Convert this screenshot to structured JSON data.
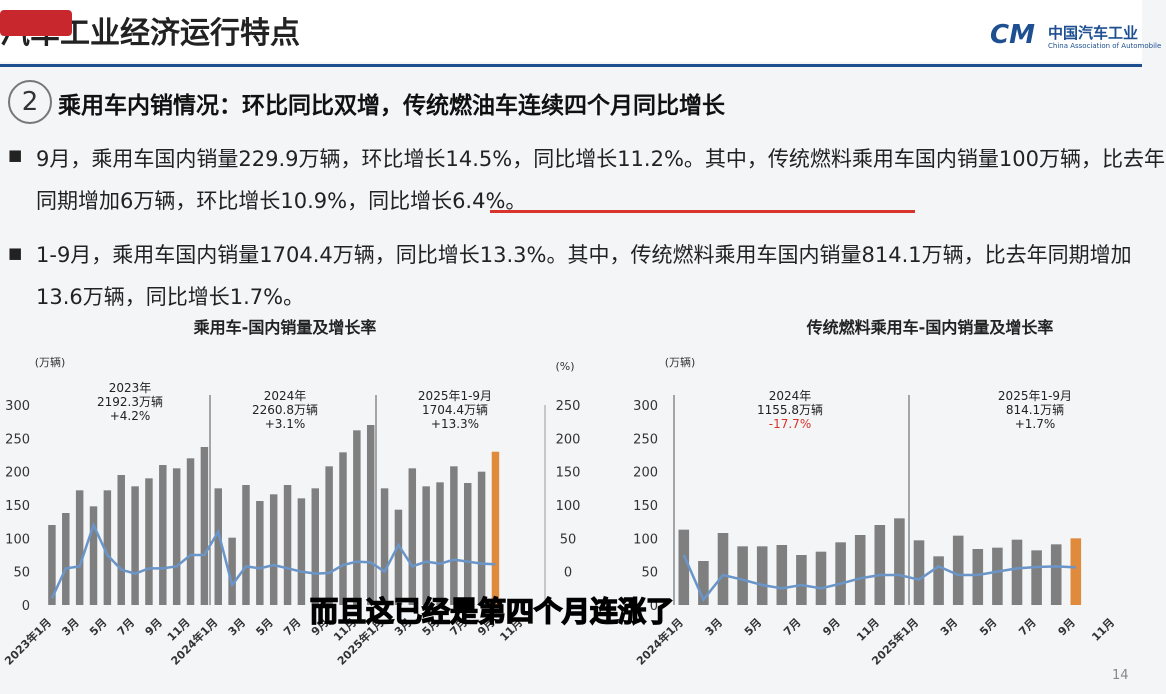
{
  "header": {
    "title": "汽车工业经济运行特点",
    "logo_text": "中国汽车工业",
    "logo_sub": "China Association of Automobile"
  },
  "section": {
    "number": "2",
    "heading": "乘用车内销情况：环比同比双增，传统燃油车连续四个月同比增长"
  },
  "bullets": [
    "9月，乘用车国内销量229.9万辆，环比增长14.5%，同比增长11.2%。其中，传统燃料乘用车国内销量100万辆，比去年同期增加6万辆，环比增长10.9%，同比增长6.4%。",
    "1-9月，乘用车国内销量1704.4万辆，同比增长13.3%。其中，传统燃料乘用车国内销量814.1万辆，比去年同期增加13.6万辆，同比增长1.7%。"
  ],
  "caption": "而且这已经是第四个月连涨了",
  "page_number": "14",
  "chart_data": [
    {
      "type": "bar",
      "title": "乘用车-国内销量及增长率",
      "y_label": "(万辆)",
      "y2_label": "(%)",
      "categories": [
        "2023年1月",
        null,
        "3月",
        null,
        "5月",
        null,
        "7月",
        null,
        "9月",
        null,
        "11月",
        null,
        "2024年1月",
        null,
        "3月",
        null,
        "5月",
        null,
        "7月",
        null,
        "9月",
        null,
        "11月",
        null,
        "2025年1月",
        null,
        "3月",
        null,
        "5月",
        null,
        "7月",
        null,
        "9月",
        null,
        "11月"
      ],
      "series": [
        {
          "name": "国内销量",
          "color": "#7f7f7f",
          "colors": [
            "#7f7f7f",
            "#7f7f7f",
            "#7f7f7f",
            "#7f7f7f",
            "#7f7f7f",
            "#7f7f7f",
            "#7f7f7f",
            "#7f7f7f",
            "#7f7f7f",
            "#7f7f7f",
            "#7f7f7f",
            "#7f7f7f",
            "#7f7f7f",
            "#7f7f7f",
            "#7f7f7f",
            "#7f7f7f",
            "#7f7f7f",
            "#7f7f7f",
            "#7f7f7f",
            "#7f7f7f",
            "#7f7f7f",
            "#7f7f7f",
            "#7f7f7f",
            "#7f7f7f",
            "#7f7f7f",
            "#7f7f7f",
            "#7f7f7f",
            "#7f7f7f",
            "#7f7f7f",
            "#7f7f7f",
            "#7f7f7f",
            "#7f7f7f",
            "#e08a3c",
            null,
            null
          ],
          "values": [
            120,
            138,
            172,
            148,
            172,
            195,
            178,
            190,
            210,
            205,
            220,
            237,
            175,
            101,
            180,
            156,
            166,
            180,
            160,
            175,
            208,
            229,
            262,
            270,
            175,
            143,
            205,
            178,
            184,
            208,
            183,
            200,
            229.9,
            null,
            null
          ]
        },
        {
          "name": "增长率",
          "color": "#6a95c8",
          "axis": "y2",
          "type": "line",
          "values": [
            -40,
            5,
            8,
            70,
            25,
            3,
            -3,
            5,
            5,
            8,
            25,
            25,
            60,
            -20,
            8,
            5,
            10,
            5,
            0,
            -3,
            -2,
            10,
            15,
            14,
            0,
            40,
            8,
            15,
            12,
            18,
            15,
            12,
            11.2,
            null,
            null
          ]
        }
      ],
      "ylim": [
        0,
        300
      ],
      "yticks": [
        0,
        50,
        100,
        150,
        200,
        250,
        300
      ],
      "y2lim": [
        -50,
        250
      ],
      "y2ticks": [
        0,
        50,
        100,
        150,
        200,
        250
      ],
      "annotations": [
        {
          "lines": [
            "2023年",
            "2192.3万辆",
            "+4.2%"
          ],
          "color": "#222222"
        },
        {
          "lines": [
            "2024年",
            "2260.8万辆",
            "+3.1%"
          ],
          "color": "#222222"
        },
        {
          "lines": [
            "2025年1-9月",
            "1704.4万辆",
            "+13.3%"
          ],
          "color": "#222222"
        }
      ]
    },
    {
      "type": "bar",
      "title": "传统燃料乘用车-国内销量及增长率",
      "y_label": "(万辆)",
      "categories": [
        "2024年1月",
        null,
        "3月",
        null,
        "5月",
        null,
        "7月",
        null,
        "9月",
        null,
        "11月",
        null,
        "2025年1月",
        null,
        "3月",
        null,
        "5月",
        null,
        "7月",
        null,
        "9月",
        null,
        "11月"
      ],
      "series": [
        {
          "name": "国内销量",
          "color": "#7f7f7f",
          "colors": [
            "#7f7f7f",
            "#7f7f7f",
            "#7f7f7f",
            "#7f7f7f",
            "#7f7f7f",
            "#7f7f7f",
            "#7f7f7f",
            "#7f7f7f",
            "#7f7f7f",
            "#7f7f7f",
            "#7f7f7f",
            "#7f7f7f",
            "#7f7f7f",
            "#7f7f7f",
            "#7f7f7f",
            "#7f7f7f",
            "#7f7f7f",
            "#7f7f7f",
            "#7f7f7f",
            "#7f7f7f",
            "#e08a3c",
            null,
            null
          ],
          "values": [
            113,
            66,
            108,
            88,
            88,
            90,
            75,
            80,
            94,
            105,
            120,
            130,
            97,
            73,
            104,
            84,
            86,
            98,
            82,
            91,
            100,
            null,
            null
          ]
        },
        {
          "name": "增长率",
          "color": "#6a95c8",
          "axis": "y2",
          "type": "line",
          "values": [
            25,
            -42,
            -5,
            -12,
            -20,
            -25,
            -20,
            -25,
            -18,
            -10,
            -5,
            -5,
            -12,
            8,
            -5,
            -5,
            0,
            5,
            7,
            8,
            6.4,
            null,
            null
          ]
        }
      ],
      "ylim": [
        0,
        300
      ],
      "yticks": [
        0,
        50,
        100,
        150,
        200,
        250,
        300
      ],
      "y2lim": [
        -50,
        250
      ],
      "annotations": [
        {
          "lines": [
            "2024年",
            "1155.8万辆",
            "-17.7%"
          ],
          "color": "#d9342b"
        },
        {
          "lines": [
            "2025年1-9月",
            "814.1万辆",
            "+1.7%"
          ],
          "color": "#222222"
        }
      ]
    }
  ]
}
